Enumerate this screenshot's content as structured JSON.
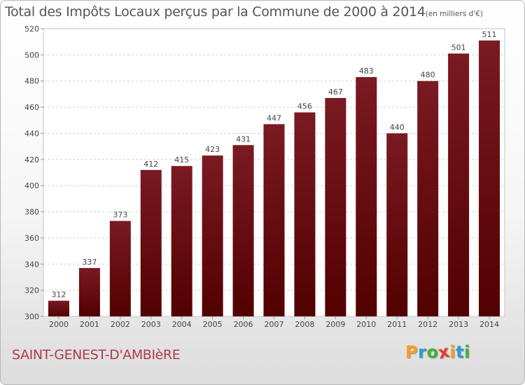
{
  "chart_data": {
    "type": "bar",
    "title": "Total des Impôts Locaux perçus par la Commune de 2000 à 2014",
    "subtitle": "(en milliers d'€)",
    "categories": [
      "2000",
      "2001",
      "2002",
      "2003",
      "2004",
      "2005",
      "2006",
      "2007",
      "2008",
      "2009",
      "2010",
      "2011",
      "2012",
      "2013",
      "2014"
    ],
    "values": [
      312,
      337,
      373,
      412,
      415,
      423,
      431,
      447,
      456,
      467,
      483,
      440,
      480,
      501,
      511
    ],
    "ylim": [
      300,
      520
    ],
    "yticks": [
      300,
      320,
      340,
      360,
      380,
      400,
      420,
      440,
      460,
      480,
      500,
      520
    ],
    "xlabel": "",
    "ylabel": "",
    "grid": "horizontal dashed",
    "bar_color": "#7a1a22",
    "bar_color_dark": "#520000"
  },
  "commune": "SAINT-GENEST-D'AMBIèRE",
  "brand": {
    "letters": [
      "P",
      "r",
      "o",
      "x",
      "i",
      "t",
      "i"
    ],
    "colors": [
      "#f0a020",
      "#2a9ad8",
      "#46b035",
      "#e83a3a",
      "#f0a020",
      "#2a9ad8",
      "#46b035"
    ]
  }
}
